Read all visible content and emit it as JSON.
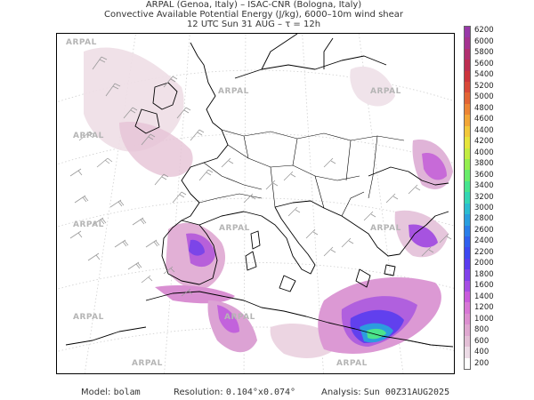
{
  "header": {
    "line1": "ARPAL (Genoa, Italy)  –  ISAC-CNR (Bologna, Italy)",
    "line2": "Convective Available Potential Energy (J/kg), 6000–10m wind shear",
    "line3": "12 UTC Sun 31 AUG  –  τ = 12h"
  },
  "colorbar": {
    "labels": [
      "200",
      "400",
      "600",
      "800",
      "1000",
      "1200",
      "1400",
      "1600",
      "1800",
      "2000",
      "2200",
      "2400",
      "2600",
      "2800",
      "3000",
      "3200",
      "3400",
      "3600",
      "3800",
      "4000",
      "4200",
      "4400",
      "4600",
      "4800",
      "5000",
      "5200",
      "5400",
      "5600",
      "5800",
      "6000",
      "6200"
    ],
    "colors": [
      "#ffffff",
      "#ecdbe6",
      "#e3bfd6",
      "#dfa8d0",
      "#dc8fd0",
      "#d877d6",
      "#c95bdc",
      "#a64ee4",
      "#8142ea",
      "#5a3cef",
      "#3d48f1",
      "#3060ee",
      "#2a7ee8",
      "#2a9ede",
      "#2cbcd0",
      "#34d6b4",
      "#46e48e",
      "#68ec6a",
      "#94ee50",
      "#c2ec42",
      "#e6e43c",
      "#f2c83a",
      "#f2a636",
      "#ec8434",
      "#e26434",
      "#d84838",
      "#cc343c",
      "#bc2e50",
      "#b03070",
      "#a43290",
      "#9838a8"
    ]
  },
  "watermark": "ARPAL",
  "footer": {
    "model_label": "Model:",
    "model_value": "bolam",
    "resolution_label": "Resolution:",
    "resolution_value": "0.104°x0.074°",
    "analysis_label": "Analysis:",
    "analysis_value": "Sun 00Z31AUG2025"
  },
  "map": {
    "land_color": "#ffffff",
    "coast_color": "#000000",
    "grid_color": "#c8c8c8",
    "barb_color": "#9a9a9a"
  }
}
